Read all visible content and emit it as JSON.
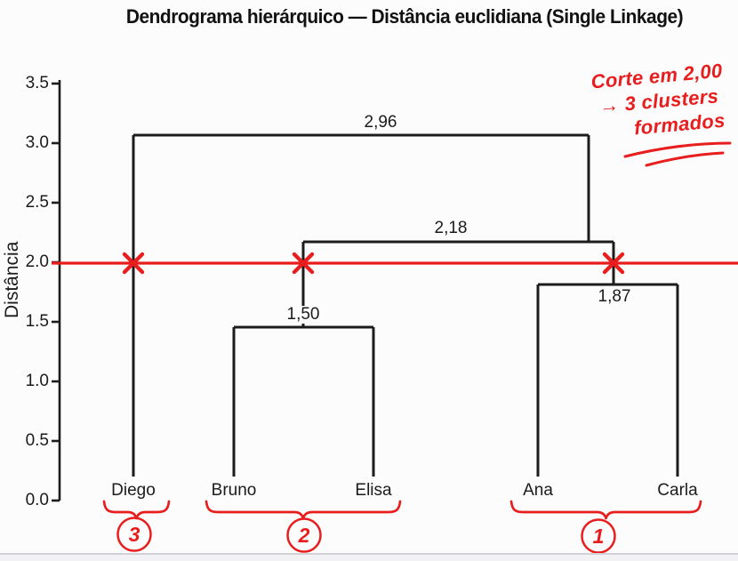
{
  "page": {
    "bg_color": "#fcfcfc",
    "line_color": "#1c1c1c",
    "accent_red": "#e81d1d"
  },
  "title": "Dendrograma hierárquico — Distância euclidiana (Single Linkage)",
  "axis": {
    "label": "Distância",
    "tick_labels": [
      "3.5",
      "3.0",
      "2.5",
      "2.0",
      "1.5",
      "1.0",
      "0.5",
      "0.0"
    ]
  },
  "leaves": [
    "Diego",
    "Bruno",
    "Elisa",
    "Ana",
    "Carla"
  ],
  "annotation": {
    "line1": "Corte em 2,00",
    "line2": "→ 3 clusters",
    "line3": "formados"
  },
  "cluster_badges": [
    "3",
    "2",
    "1"
  ],
  "chart_data": {
    "type": "dendrogram",
    "title": "Dendrograma hierárquico — Distância euclidiana (Single Linkage)",
    "ylabel": "Distância",
    "ylim": [
      0.0,
      3.5
    ],
    "yticks": [
      3.5,
      3.0,
      2.5,
      2.0,
      1.5,
      1.0,
      0.5,
      0.0
    ],
    "linkage": "single",
    "metric": "euclidean",
    "leaves": [
      "Diego",
      "Bruno",
      "Elisa",
      "Ana",
      "Carla"
    ],
    "merges": [
      {
        "members": [
          "Bruno",
          "Elisa"
        ],
        "distance": 1.5,
        "label": "1,50"
      },
      {
        "members": [
          "Ana",
          "Carla"
        ],
        "distance": 1.87,
        "label": "1,87"
      },
      {
        "members": [
          "Bruno+Elisa",
          "Ana+Carla"
        ],
        "distance": 2.18,
        "label": "2,18"
      },
      {
        "members": [
          "Diego",
          "Bruno+Elisa+Ana+Carla"
        ],
        "distance": 2.96,
        "label": "2,96"
      }
    ],
    "cut_line": {
      "distance": 2.0,
      "crossings": 3
    },
    "clusters_at_cut": [
      {
        "id": "1",
        "members": [
          "Ana",
          "Carla"
        ]
      },
      {
        "id": "2",
        "members": [
          "Bruno",
          "Elisa"
        ]
      },
      {
        "id": "3",
        "members": [
          "Diego"
        ]
      }
    ],
    "legend": "none",
    "grid": false
  }
}
